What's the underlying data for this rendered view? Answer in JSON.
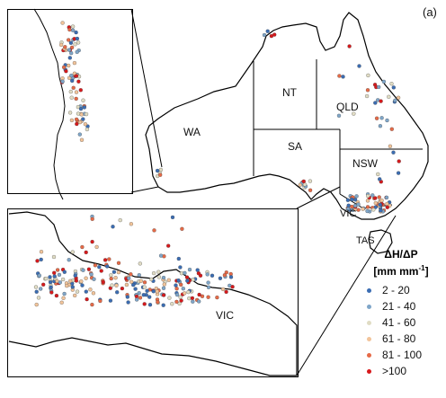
{
  "panel_label": "(a)",
  "regions": {
    "wa": "WA",
    "nt": "NT",
    "qld": "QLD",
    "sa": "SA",
    "nsw": "NSW",
    "vic": "VIC",
    "tas": "TAS",
    "vic_inset": "VIC"
  },
  "legend": {
    "title_line1": "ΔH/ΔP",
    "title_unit": "[mm mm",
    "title_sup": "-1",
    "title_close": "]",
    "classes": [
      {
        "label": "2 - 20",
        "color": "#3b6db3"
      },
      {
        "label": "21 - 40",
        "color": "#7fa6c9"
      },
      {
        "label": "41 - 60",
        "color": "#e0dcc4"
      },
      {
        "label": "61 - 80",
        "color": "#f2c49a"
      },
      {
        "label": "81 - 100",
        "color": "#e66a47"
      },
      {
        "label": ">100",
        "color": "#d7191c"
      }
    ]
  }
}
